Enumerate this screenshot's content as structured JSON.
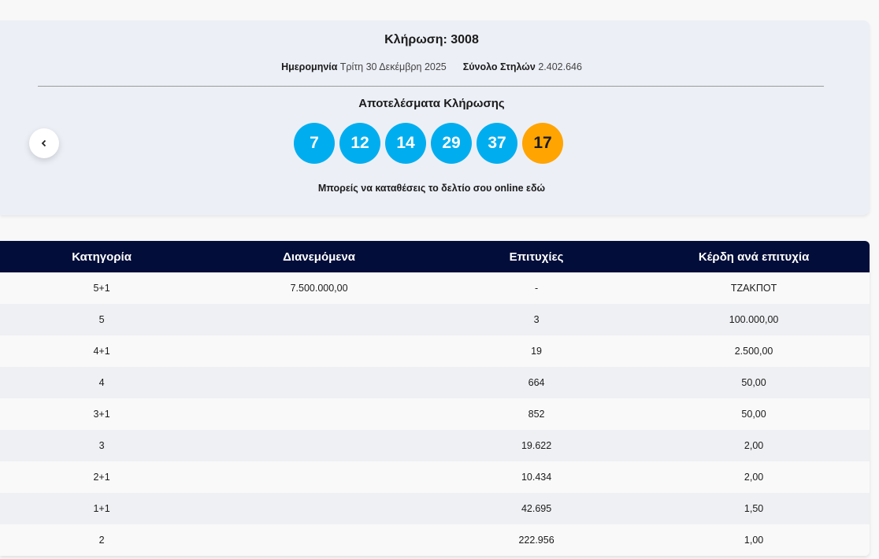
{
  "draw": {
    "title": "Κλήρωση: 3008",
    "date_label": "Ημερομηνία",
    "date_value": "Τρίτη 30 Δεκέμβρη 2025",
    "columns_label": "Σύνολο Στηλών",
    "columns_value": "2.402.646",
    "results_title": "Αποτελέσματα Κλήρωσης",
    "numbers": [
      7,
      12,
      14,
      29,
      37
    ],
    "bonus": 17,
    "online_link": "Μπορείς να καταθέσεις το δελτίο σου online εδώ"
  },
  "table": {
    "headers": [
      "Κατηγορία",
      "Διανεμόμενα",
      "Επιτυχίες",
      "Κέρδη ανά επιτυχία"
    ],
    "rows": [
      {
        "category": "5+1",
        "distributed": "7.500.000,00",
        "winners": "-",
        "prize": "ΤΖΑΚΠΟΤ"
      },
      {
        "category": "5",
        "winners": "3",
        "prize": "100.000,00"
      },
      {
        "category": "4+1",
        "winners": "19",
        "prize": "2.500,00"
      },
      {
        "category": "4",
        "winners": "664",
        "prize": "50,00"
      },
      {
        "category": "3+1",
        "winners": "852",
        "prize": "50,00"
      },
      {
        "category": "3",
        "winners": "19.622",
        "prize": "2,00"
      },
      {
        "category": "2+1",
        "winners": "10.434",
        "prize": "2,00"
      },
      {
        "category": "1+1",
        "winners": "42.695",
        "prize": "1,50"
      },
      {
        "category": "2",
        "winners": "222.956",
        "prize": "1,00"
      }
    ]
  }
}
